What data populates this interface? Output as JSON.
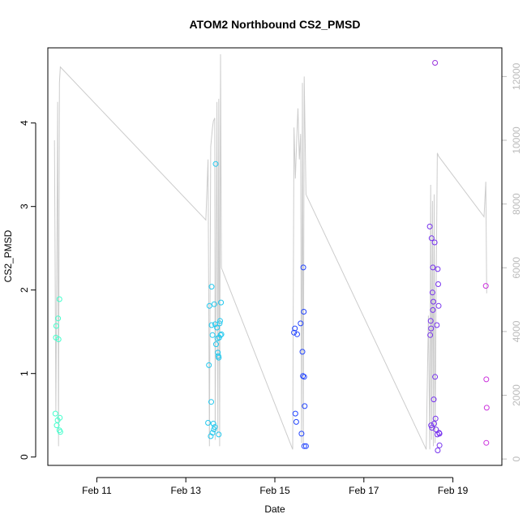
{
  "chart_data": {
    "type": "scatter",
    "title": "ATOM2 Northbound CS2_PMSD",
    "xlabel": "Date",
    "ylabel": "CS2_PMSD",
    "x_ticks": [
      "Feb 11",
      "Feb 13",
      "Feb 15",
      "Feb 17",
      "Feb 19"
    ],
    "x_tick_days": [
      11,
      13,
      15,
      17,
      19
    ],
    "xlim": [
      9.9,
      20.1
    ],
    "ylim": [
      -0.1,
      4.9
    ],
    "y_ticks": [
      0,
      1,
      2,
      3,
      4
    ],
    "y2lim": [
      -200,
      12900
    ],
    "y2_ticks": [
      0,
      2000,
      4000,
      6000,
      8000,
      10000,
      12000
    ],
    "grid": false,
    "points": [
      {
        "x": 10.07,
        "y": 0.52,
        "color": "#44ffcc"
      },
      {
        "x": 10.08,
        "y": 1.43,
        "color": "#44ffcc"
      },
      {
        "x": 10.09,
        "y": 1.57,
        "color": "#44ffcc"
      },
      {
        "x": 10.1,
        "y": 0.38,
        "color": "#44ffcc"
      },
      {
        "x": 10.12,
        "y": 0.44,
        "color": "#44ffcc"
      },
      {
        "x": 10.13,
        "y": 1.66,
        "color": "#44ffcc"
      },
      {
        "x": 10.14,
        "y": 1.41,
        "color": "#44ffcc"
      },
      {
        "x": 10.16,
        "y": 0.32,
        "color": "#44ffcc"
      },
      {
        "x": 10.17,
        "y": 0.47,
        "color": "#44ffcc"
      },
      {
        "x": 10.18,
        "y": 0.3,
        "color": "#44ffcc"
      },
      {
        "x": 10.16,
        "y": 1.89,
        "color": "#44ffcc"
      },
      {
        "x": 13.5,
        "y": 0.41,
        "color": "#22c8ee"
      },
      {
        "x": 13.52,
        "y": 1.1,
        "color": "#22c8ee"
      },
      {
        "x": 13.53,
        "y": 1.81,
        "color": "#22c8ee"
      },
      {
        "x": 13.56,
        "y": 0.25,
        "color": "#22c8ee"
      },
      {
        "x": 13.57,
        "y": 0.66,
        "color": "#22c8ee"
      },
      {
        "x": 13.58,
        "y": 2.04,
        "color": "#22c8ee"
      },
      {
        "x": 13.58,
        "y": 1.58,
        "color": "#22c8ee"
      },
      {
        "x": 13.6,
        "y": 1.46,
        "color": "#22c8ee"
      },
      {
        "x": 13.6,
        "y": 0.29,
        "color": "#22c8ee"
      },
      {
        "x": 13.62,
        "y": 0.4,
        "color": "#22c8ee"
      },
      {
        "x": 13.63,
        "y": 0.33,
        "color": "#22c8ee"
      },
      {
        "x": 13.64,
        "y": 1.83,
        "color": "#22c8ee"
      },
      {
        "x": 13.65,
        "y": 0.36,
        "color": "#22c8ee"
      },
      {
        "x": 13.66,
        "y": 1.59,
        "color": "#22c8ee"
      },
      {
        "x": 13.67,
        "y": 3.51,
        "color": "#22c8ee"
      },
      {
        "x": 13.68,
        "y": 1.35,
        "color": "#22c8ee"
      },
      {
        "x": 13.7,
        "y": 1.55,
        "color": "#22c8ee"
      },
      {
        "x": 13.71,
        "y": 1.42,
        "color": "#22c8ee"
      },
      {
        "x": 13.72,
        "y": 1.25,
        "color": "#22c8ee"
      },
      {
        "x": 13.73,
        "y": 1.21,
        "color": "#22c8ee"
      },
      {
        "x": 13.74,
        "y": 1.19,
        "color": "#22c8ee"
      },
      {
        "x": 13.75,
        "y": 1.43,
        "color": "#22c8ee"
      },
      {
        "x": 13.76,
        "y": 1.6,
        "color": "#22c8ee"
      },
      {
        "x": 13.77,
        "y": 1.63,
        "color": "#22c8ee"
      },
      {
        "x": 13.78,
        "y": 1.46,
        "color": "#22c8ee"
      },
      {
        "x": 13.79,
        "y": 1.85,
        "color": "#22c8ee"
      },
      {
        "x": 13.74,
        "y": 0.27,
        "color": "#22c8ee"
      },
      {
        "x": 13.8,
        "y": 1.47,
        "color": "#22c8ee"
      },
      {
        "x": 15.43,
        "y": 1.49,
        "color": "#2244ff"
      },
      {
        "x": 15.45,
        "y": 1.54,
        "color": "#2244ff"
      },
      {
        "x": 15.46,
        "y": 0.52,
        "color": "#2244ff"
      },
      {
        "x": 15.48,
        "y": 0.42,
        "color": "#2244ff"
      },
      {
        "x": 15.5,
        "y": 1.47,
        "color": "#2244ff"
      },
      {
        "x": 15.58,
        "y": 1.6,
        "color": "#2244ff"
      },
      {
        "x": 15.6,
        "y": 0.28,
        "color": "#2244ff"
      },
      {
        "x": 15.62,
        "y": 1.26,
        "color": "#2244ff"
      },
      {
        "x": 15.63,
        "y": 0.97,
        "color": "#2244ff"
      },
      {
        "x": 15.64,
        "y": 2.27,
        "color": "#2244ff"
      },
      {
        "x": 15.65,
        "y": 1.74,
        "color": "#2244ff"
      },
      {
        "x": 15.66,
        "y": 0.96,
        "color": "#2244ff"
      },
      {
        "x": 15.67,
        "y": 0.61,
        "color": "#2244ff"
      },
      {
        "x": 15.66,
        "y": 0.13,
        "color": "#2244ff"
      },
      {
        "x": 15.7,
        "y": 0.13,
        "color": "#2244ff"
      },
      {
        "x": 18.48,
        "y": 2.76,
        "color": "#7733ee"
      },
      {
        "x": 18.49,
        "y": 1.46,
        "color": "#7733ee"
      },
      {
        "x": 18.5,
        "y": 1.63,
        "color": "#7733ee"
      },
      {
        "x": 18.51,
        "y": 0.38,
        "color": "#7733ee"
      },
      {
        "x": 18.51,
        "y": 1.54,
        "color": "#7733ee"
      },
      {
        "x": 18.52,
        "y": 2.62,
        "color": "#7733ee"
      },
      {
        "x": 18.53,
        "y": 0.35,
        "color": "#7733ee"
      },
      {
        "x": 18.54,
        "y": 1.97,
        "color": "#7733ee"
      },
      {
        "x": 18.55,
        "y": 2.27,
        "color": "#7733ee"
      },
      {
        "x": 18.55,
        "y": 1.76,
        "color": "#7733ee"
      },
      {
        "x": 18.56,
        "y": 1.86,
        "color": "#7733ee"
      },
      {
        "x": 18.57,
        "y": 0.69,
        "color": "#7733ee"
      },
      {
        "x": 18.58,
        "y": 0.4,
        "color": "#7733ee"
      },
      {
        "x": 18.59,
        "y": 2.57,
        "color": "#7733ee"
      },
      {
        "x": 18.6,
        "y": 0.96,
        "color": "#7733ee"
      },
      {
        "x": 18.61,
        "y": 0.46,
        "color": "#7733ee"
      },
      {
        "x": 18.62,
        "y": 0.33,
        "color": "#7733ee"
      },
      {
        "x": 18.64,
        "y": 1.58,
        "color": "#7733ee"
      },
      {
        "x": 18.65,
        "y": 0.27,
        "color": "#7733ee"
      },
      {
        "x": 18.66,
        "y": 2.25,
        "color": "#7733ee"
      },
      {
        "x": 18.67,
        "y": 2.07,
        "color": "#7733ee"
      },
      {
        "x": 18.68,
        "y": 1.81,
        "color": "#7733ee"
      },
      {
        "x": 18.69,
        "y": 0.29,
        "color": "#7733ee"
      },
      {
        "x": 18.7,
        "y": 0.14,
        "color": "#7733ee"
      },
      {
        "x": 18.7,
        "y": 0.28,
        "color": "#7733ee"
      },
      {
        "x": 18.66,
        "y": 0.08,
        "color": "#7733ee"
      },
      {
        "x": 18.6,
        "y": 4.72,
        "color": "#9933dd"
      },
      {
        "x": 19.74,
        "y": 2.05,
        "color": "#cc33dd"
      },
      {
        "x": 19.75,
        "y": 0.93,
        "color": "#cc33dd"
      },
      {
        "x": 19.76,
        "y": 0.59,
        "color": "#cc33dd"
      },
      {
        "x": 19.75,
        "y": 0.17,
        "color": "#cc33dd"
      }
    ],
    "line_series": {
      "color": "#cccccc",
      "axis": "right",
      "points": [
        [
          10.05,
          10000
        ],
        [
          10.08,
          1500
        ],
        [
          10.1,
          5800
        ],
        [
          10.12,
          11200
        ],
        [
          10.14,
          400
        ],
        [
          10.16,
          11800
        ],
        [
          10.18,
          12300
        ],
        [
          13.45,
          7500
        ],
        [
          13.5,
          9400
        ],
        [
          13.53,
          400
        ],
        [
          13.56,
          9800
        ],
        [
          13.6,
          10400
        ],
        [
          13.62,
          10600
        ],
        [
          13.65,
          10700
        ],
        [
          13.66,
          600
        ],
        [
          13.7,
          11200
        ],
        [
          13.72,
          800
        ],
        [
          13.74,
          11300
        ],
        [
          13.76,
          400
        ],
        [
          13.78,
          12700
        ],
        [
          13.8,
          6000
        ],
        [
          15.4,
          300
        ],
        [
          15.43,
          10400
        ],
        [
          15.46,
          8800
        ],
        [
          15.5,
          10400
        ],
        [
          15.52,
          11000
        ],
        [
          15.55,
          9400
        ],
        [
          15.58,
          10200
        ],
        [
          15.6,
          500
        ],
        [
          15.62,
          11800
        ],
        [
          15.64,
          400
        ],
        [
          15.66,
          12000
        ],
        [
          15.7,
          8300
        ],
        [
          18.4,
          300
        ],
        [
          18.45,
          4500
        ],
        [
          18.48,
          300
        ],
        [
          18.5,
          8600
        ],
        [
          18.52,
          600
        ],
        [
          18.54,
          8100
        ],
        [
          18.56,
          400
        ],
        [
          18.58,
          8300
        ],
        [
          18.6,
          500
        ],
        [
          18.63,
          6400
        ],
        [
          18.65,
          9600
        ],
        [
          18.68,
          9500
        ],
        [
          19.7,
          7600
        ],
        [
          19.74,
          8700
        ],
        [
          19.76,
          5200
        ]
      ]
    }
  }
}
